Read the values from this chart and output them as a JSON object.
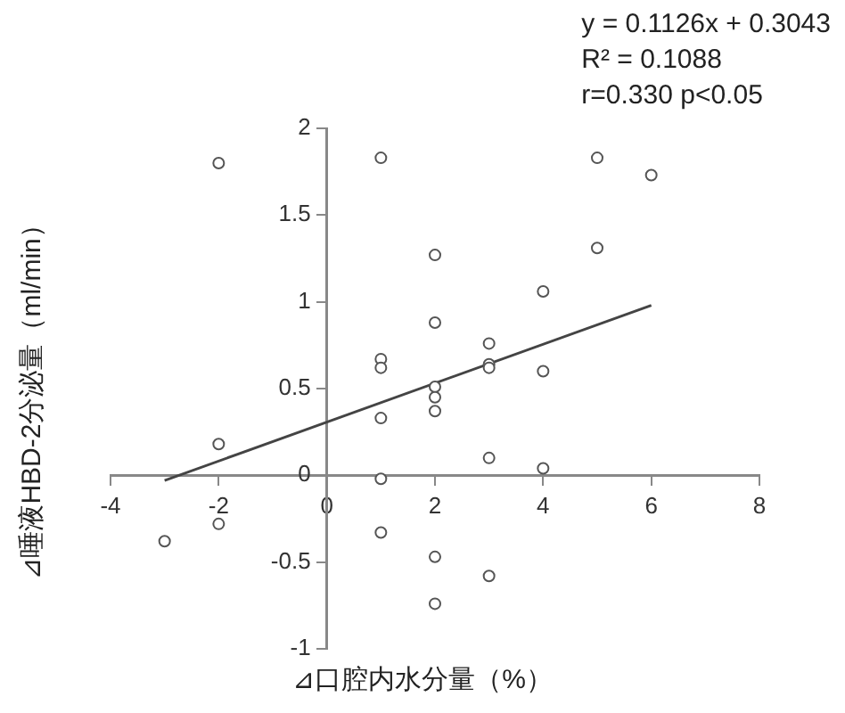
{
  "chart_data": {
    "type": "scatter",
    "xlabel": "⊿口腔内水分量（%）",
    "ylabel": "⊿唾液HBD-2分泌量（ml/min）",
    "annotations": [
      "y = 0.1126x + 0.3043",
      "R² = 0.1088",
      "r=0.330  p<0.05"
    ],
    "x": [
      -3,
      -2,
      -2,
      -2,
      1,
      1,
      1,
      1,
      1,
      1,
      2,
      2,
      2,
      2,
      2,
      2,
      2,
      3,
      3,
      3,
      3,
      3,
      4,
      4,
      4,
      5,
      5,
      6
    ],
    "series": [
      {
        "type": "scatter",
        "color": "#555555",
        "marker": "circle",
        "values": [
          -0.38,
          1.8,
          0.18,
          -0.28,
          1.83,
          0.67,
          0.62,
          0.33,
          -0.02,
          -0.33,
          1.27,
          0.88,
          0.51,
          0.45,
          0.37,
          -0.47,
          -0.74,
          0.76,
          0.64,
          0.62,
          0.1,
          -0.58,
          1.06,
          0.6,
          0.04,
          1.83,
          1.31,
          1.73
        ]
      },
      {
        "type": "line",
        "color": "#444444",
        "marker": "none",
        "line_style": "solid",
        "x": [
          -3,
          6
        ],
        "values": [
          -0.03,
          0.98
        ]
      }
    ],
    "xlim": [
      -4,
      8
    ],
    "xticks": [
      -4,
      -2,
      0,
      2,
      4,
      6,
      8
    ],
    "ylim": [
      -1,
      2
    ],
    "yticks": [
      -1,
      -0.5,
      0,
      0.5,
      1,
      1.5,
      2
    ],
    "grid": false,
    "legend": false
  }
}
